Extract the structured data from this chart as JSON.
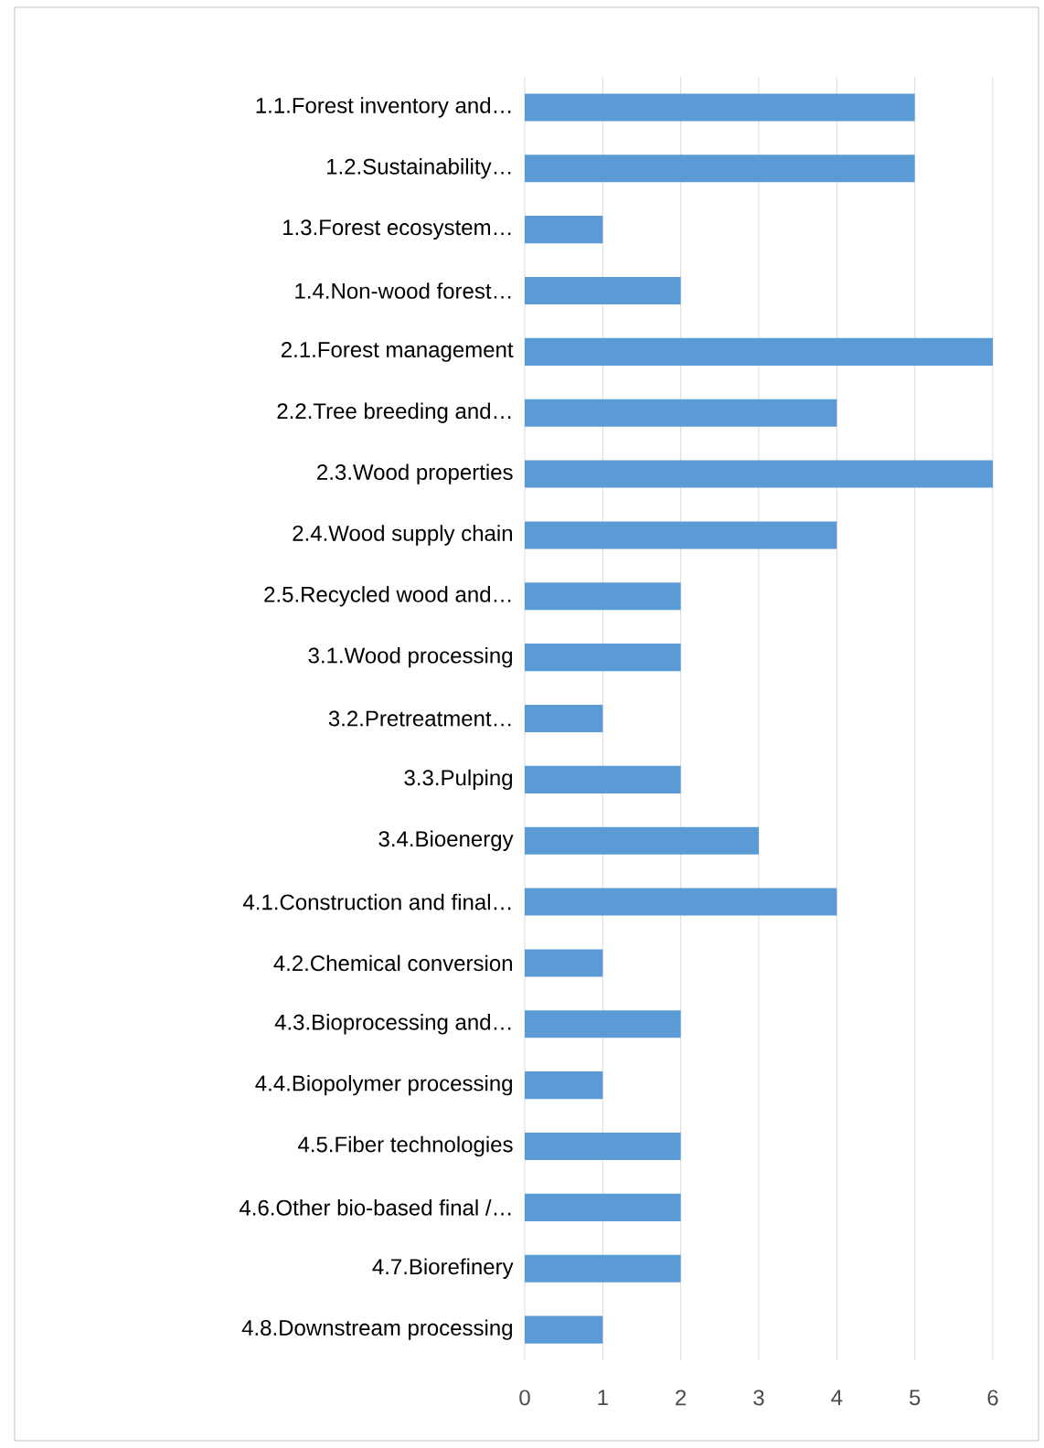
{
  "chart_data": {
    "type": "bar",
    "orientation": "horizontal",
    "categories": [
      "1.1.Forest inventory and…",
      "1.2.Sustainability…",
      "1.3.Forest ecosystem…",
      "1.4.Non-wood forest…",
      "2.1.Forest management",
      "2.2.Tree breeding and…",
      "2.3.Wood properties",
      "2.4.Wood supply chain",
      "2.5.Recycled wood and…",
      "3.1.Wood processing",
      "3.2.Pretreatment…",
      "3.3.Pulping",
      "3.4.Bioenergy",
      "4.1.Construction and final…",
      "4.2.Chemical conversion",
      "4.3.Bioprocessing and…",
      "4.4.Biopolymer processing",
      "4.5.Fiber technologies",
      "4.6.Other bio-based final /…",
      "4.7.Biorefinery",
      "4.8.Downstream processing"
    ],
    "values": [
      5,
      5,
      1,
      2,
      6,
      4,
      6,
      4,
      2,
      2,
      1,
      2,
      3,
      4,
      1,
      2,
      1,
      2,
      2,
      2,
      1
    ],
    "color": "#5b9bd5",
    "xlim": [
      0,
      6
    ],
    "xticks": [
      0,
      1,
      2,
      3,
      4,
      5,
      6
    ],
    "grid": "x"
  }
}
